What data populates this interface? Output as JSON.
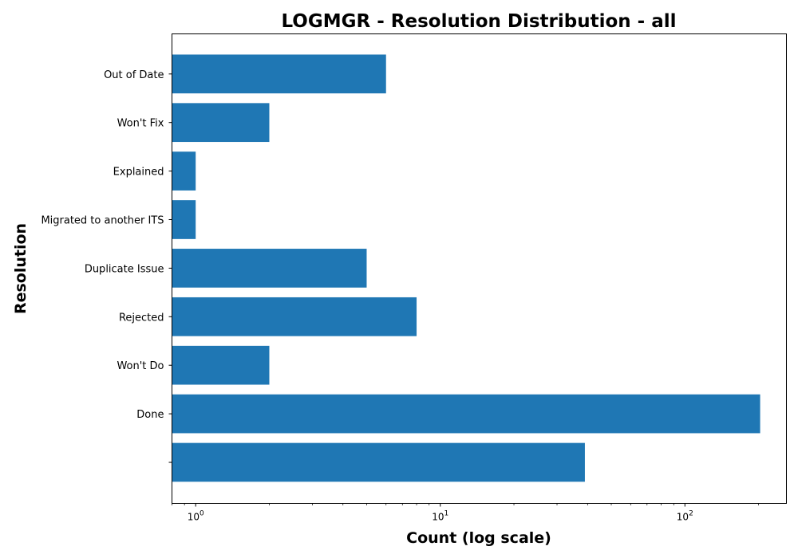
{
  "chart_data": {
    "type": "bar",
    "orientation": "horizontal",
    "title": "LOGMGR - Resolution Distribution - all",
    "xlabel": "Count (log scale)",
    "ylabel": "Resolution",
    "x_scale": "log",
    "xlim": [
      0.8,
      260
    ],
    "x_ticks": [
      {
        "base": "10",
        "exp": "0"
      },
      {
        "base": "10",
        "exp": "1"
      },
      {
        "base": "10",
        "exp": "2"
      }
    ],
    "categories": [
      "",
      "Done",
      "Won't Do",
      "Rejected",
      "Duplicate Issue",
      "Migrated to another ITS",
      "Explained",
      "Won't Fix",
      "Out of Date"
    ],
    "values": [
      39,
      203,
      2,
      8,
      5,
      1,
      1,
      2,
      6
    ],
    "bar_color": "#1f77b4",
    "grid": false,
    "legend": "none"
  }
}
